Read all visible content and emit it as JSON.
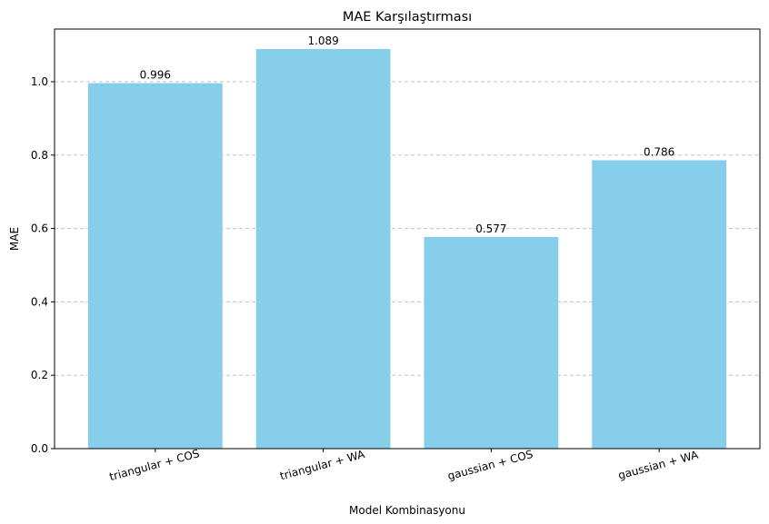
{
  "chart_data": {
    "type": "bar",
    "title": "MAE Karşılaştırması",
    "xlabel": "Model Kombinasyonu",
    "ylabel": "MAE",
    "categories": [
      "triangular + COS",
      "triangular + WA",
      "gaussian + COS",
      "gaussian + WA"
    ],
    "values": [
      0.996,
      1.089,
      0.577,
      0.786
    ],
    "data_labels": [
      "0.996",
      "1.089",
      "0.577",
      "0.786"
    ],
    "ylim": [
      0,
      1.1435
    ],
    "yticks": [
      0.0,
      0.2,
      0.4,
      0.6,
      0.8,
      1.0
    ],
    "ytick_labels": [
      "0.0",
      "0.2",
      "0.4",
      "0.6",
      "0.8",
      "1.0"
    ],
    "grid": "y dashed",
    "bar_color": "#87CEEB",
    "grid_color": "#c0c0c0",
    "xtick_rotation_deg": 15
  }
}
